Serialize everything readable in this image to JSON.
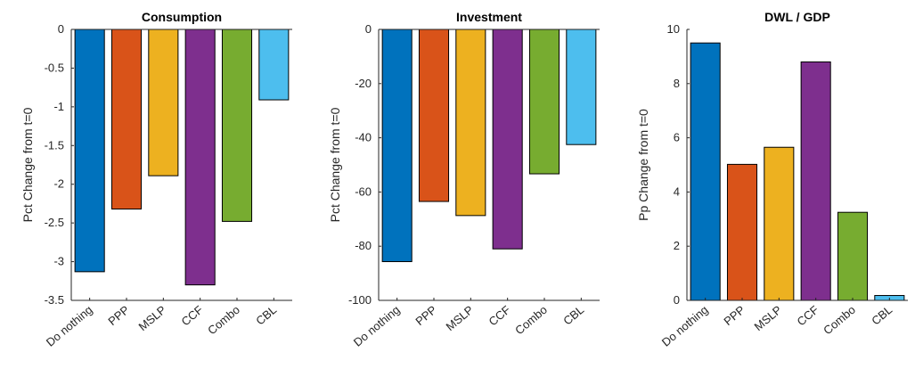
{
  "chart_data": [
    {
      "type": "bar",
      "title": "Consumption",
      "y_label": "Pct Change from t=0",
      "categories": [
        "Do nothing",
        "PPP",
        "MSLP",
        "CCF",
        "Combo",
        "CBL"
      ],
      "values": [
        -3.13,
        -2.32,
        -1.89,
        -3.3,
        -2.48,
        -0.91
      ],
      "colors": [
        "#0072bd",
        "#d95319",
        "#edb120",
        "#7e2f8e",
        "#77ac30",
        "#4dbeee"
      ],
      "ylim": [
        -3.5,
        0
      ],
      "yticks": [
        0,
        -0.5,
        -1,
        -1.5,
        -2,
        -2.5,
        -3,
        -3.5
      ],
      "grid": false
    },
    {
      "type": "bar",
      "title": "Investment",
      "y_label": "Pct Change from t=0",
      "categories": [
        "Do nothing",
        "PPP",
        "MSLP",
        "CCF",
        "Combo",
        "CBL"
      ],
      "values": [
        -85.7,
        -63.5,
        -68.7,
        -81,
        -53.3,
        -42.5
      ],
      "colors": [
        "#0072bd",
        "#d95319",
        "#edb120",
        "#7e2f8e",
        "#77ac30",
        "#4dbeee"
      ],
      "ylim": [
        -100,
        0
      ],
      "yticks": [
        0,
        -20,
        -40,
        -60,
        -80,
        -100
      ],
      "grid": false
    },
    {
      "type": "bar",
      "title": "DWL / GDP",
      "y_label": "Pp Change from t=0",
      "categories": [
        "Do nothing",
        "PPP",
        "MSLP",
        "CCF",
        "Combo",
        "CBL"
      ],
      "values": [
        9.5,
        5.02,
        5.65,
        8.8,
        3.25,
        0.18
      ],
      "colors": [
        "#0072bd",
        "#d95319",
        "#edb120",
        "#7e2f8e",
        "#77ac30",
        "#4dbeee"
      ],
      "ylim": [
        0,
        10
      ],
      "yticks": [
        0,
        2,
        4,
        6,
        8,
        10
      ],
      "grid": false
    }
  ]
}
